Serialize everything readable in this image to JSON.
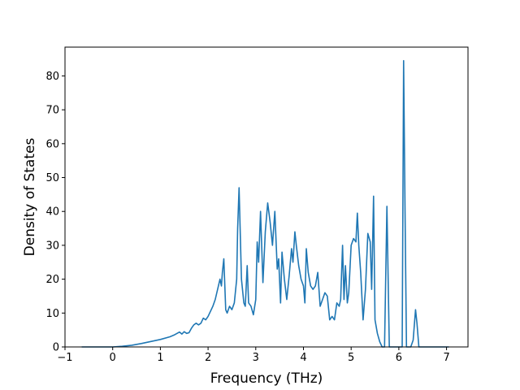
{
  "chart_data": {
    "type": "line",
    "title": "",
    "xlabel": "Frequency (THz)",
    "ylabel": "Density of States",
    "xlim": [
      -1.0,
      7.45
    ],
    "ylim": [
      0,
      88.5
    ],
    "xticks": [
      -1,
      0,
      1,
      2,
      3,
      4,
      5,
      6,
      7
    ],
    "yticks": [
      0,
      10,
      20,
      30,
      40,
      50,
      60,
      70,
      80
    ],
    "grid": false,
    "legend": "none",
    "line_color": "#1f77b4",
    "series": [
      {
        "x": [
          -0.65,
          0.0,
          0.2,
          0.4,
          0.6,
          0.8,
          1.0,
          1.2,
          1.3,
          1.4,
          1.45,
          1.5,
          1.55,
          1.6,
          1.65,
          1.7,
          1.75,
          1.8,
          1.85,
          1.9,
          1.95,
          2.0,
          2.05,
          2.1,
          2.15,
          2.2,
          2.25,
          2.28,
          2.3,
          2.33,
          2.37,
          2.4,
          2.45,
          2.5,
          2.55,
          2.6,
          2.62,
          2.65,
          2.7,
          2.75,
          2.78,
          2.82,
          2.85,
          2.9,
          2.95,
          3.0,
          3.03,
          3.06,
          3.1,
          3.15,
          3.2,
          3.25,
          3.3,
          3.35,
          3.4,
          3.45,
          3.48,
          3.52,
          3.55,
          3.6,
          3.65,
          3.7,
          3.75,
          3.78,
          3.82,
          3.85,
          3.9,
          3.95,
          4.0,
          4.03,
          4.06,
          4.1,
          4.15,
          4.2,
          4.25,
          4.3,
          4.35,
          4.4,
          4.45,
          4.5,
          4.55,
          4.6,
          4.65,
          4.7,
          4.75,
          4.78,
          4.82,
          4.85,
          4.88,
          4.92,
          4.95,
          5.0,
          5.05,
          5.1,
          5.13,
          5.16,
          5.2,
          5.25,
          5.3,
          5.35,
          5.4,
          5.43,
          5.47,
          5.5,
          5.55,
          5.6,
          5.65,
          5.7,
          5.75,
          5.8,
          6.0,
          6.07,
          6.1,
          6.13,
          6.16,
          6.2,
          6.25,
          6.3,
          6.35,
          6.38,
          6.42,
          6.45,
          6.5,
          6.8,
          7.05
        ],
        "y": [
          0.0,
          0.0,
          0.2,
          0.5,
          1.0,
          1.6,
          2.2,
          3.0,
          3.6,
          4.4,
          3.8,
          4.5,
          4.0,
          4.2,
          5.5,
          6.5,
          7.0,
          6.5,
          7.0,
          8.5,
          8.0,
          9.0,
          10.5,
          12.0,
          14.0,
          17.0,
          20.0,
          18.0,
          22.0,
          26.0,
          11.0,
          10.0,
          12.0,
          11.0,
          13.0,
          20.0,
          35.0,
          47.0,
          20.0,
          13.0,
          12.0,
          24.0,
          13.0,
          12.0,
          9.5,
          14.0,
          31.0,
          25.0,
          40.0,
          19.0,
          34.0,
          42.5,
          37.0,
          30.0,
          40.0,
          23.0,
          26.0,
          13.0,
          28.0,
          20.0,
          14.0,
          21.0,
          29.0,
          25.0,
          34.0,
          30.0,
          24.0,
          20.0,
          18.0,
          13.0,
          29.0,
          22.0,
          18.0,
          17.0,
          18.0,
          22.0,
          12.0,
          14.0,
          16.0,
          15.0,
          8.0,
          9.0,
          8.0,
          13.0,
          12.0,
          14.0,
          30.0,
          14.0,
          24.0,
          13.0,
          16.0,
          30.0,
          32.0,
          31.0,
          39.5,
          30.0,
          22.0,
          8.0,
          17.0,
          33.5,
          31.0,
          17.0,
          44.5,
          8.0,
          4.0,
          1.5,
          0.0,
          0.0,
          41.5,
          0.0,
          0.0,
          0.0,
          84.5,
          40.0,
          0.0,
          0.0,
          0.0,
          2.0,
          11.0,
          7.0,
          0.0,
          0.0,
          0.0,
          0.0,
          0.0
        ]
      }
    ]
  }
}
